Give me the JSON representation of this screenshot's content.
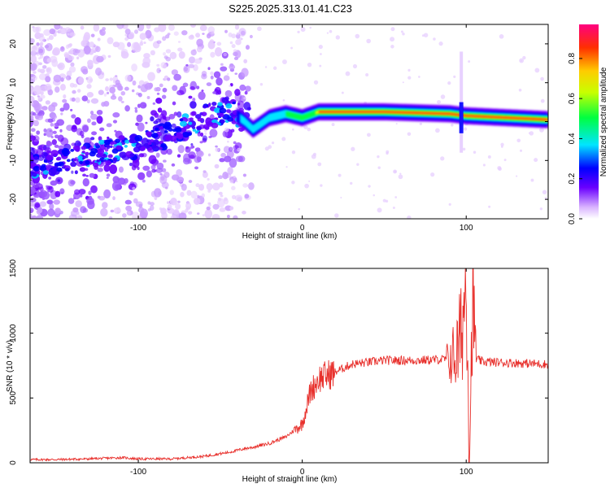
{
  "chart_data": [
    {
      "type": "heatmap",
      "title": "S225.2025.313.01.41.C23",
      "xlabel": "Height of straight line (km)",
      "ylabel": "Frequency (Hz)",
      "xlim": [
        -166,
        150
      ],
      "ylim": [
        -25,
        25
      ],
      "xticks": [
        -100,
        0,
        100
      ],
      "yticks": [
        -20,
        -10,
        0,
        10,
        20
      ],
      "colorbar": {
        "label": "Normalized spectral amplitude",
        "range": [
          0,
          0.97
        ],
        "ticks": [
          0.0,
          0.2,
          0.4,
          0.6,
          0.8
        ]
      },
      "ridge": [
        {
          "x": -166,
          "y": -12
        },
        {
          "x": -140,
          "y": -10
        },
        {
          "x": -120,
          "y": -8
        },
        {
          "x": -100,
          "y": -6
        },
        {
          "x": -80,
          "y": -3
        },
        {
          "x": -60,
          "y": 1
        },
        {
          "x": -45,
          "y": 3
        },
        {
          "x": -35,
          "y": 0
        },
        {
          "x": -30,
          "y": -2
        },
        {
          "x": -20,
          "y": 1
        },
        {
          "x": -10,
          "y": 2
        },
        {
          "x": 0,
          "y": 1
        },
        {
          "x": 10,
          "y": 2.5
        },
        {
          "x": 50,
          "y": 2.5
        },
        {
          "x": 90,
          "y": 2
        },
        {
          "x": 100,
          "y": 1.5
        },
        {
          "x": 150,
          "y": 0.5
        }
      ]
    },
    {
      "type": "line",
      "xlabel": "Height of straight line (km)",
      "ylabel": "SNR (10 * v/v)",
      "xlim": [
        -166,
        150
      ],
      "ylim": [
        0,
        1500
      ],
      "xticks": [
        -100,
        0,
        100
      ],
      "yticks": [
        0,
        500,
        1000,
        1500
      ],
      "series": [
        {
          "name": "SNR",
          "color": "#e8302c",
          "x": [
            -166,
            -150,
            -130,
            -110,
            -100,
            -80,
            -60,
            -45,
            -35,
            -30,
            -20,
            -10,
            0,
            5,
            10,
            20,
            30,
            50,
            70,
            90,
            95,
            98,
            100,
            102,
            104,
            106,
            110,
            130,
            150
          ],
          "y": [
            25,
            25,
            30,
            40,
            30,
            30,
            50,
            80,
            110,
            120,
            150,
            200,
            300,
            550,
            650,
            700,
            760,
            790,
            790,
            800,
            850,
            1100,
            1500,
            150,
            1250,
            800,
            780,
            770,
            760
          ]
        }
      ]
    }
  ]
}
